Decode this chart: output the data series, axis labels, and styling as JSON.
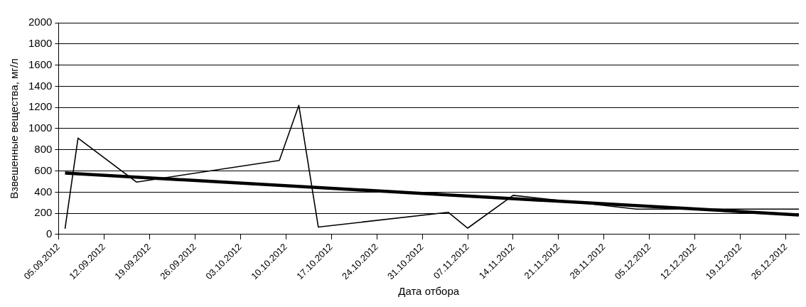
{
  "chart_data": {
    "type": "line",
    "xlabel": "Дата отбора",
    "ylabel": "Взвешенные вещества, мг/л",
    "xlim": [
      "2012-09-05",
      "2012-12-28"
    ],
    "xticks": [
      {
        "value": "2012-09-05",
        "label": "05.09.2012"
      },
      {
        "value": "2012-09-12",
        "label": "12.09.2012"
      },
      {
        "value": "2012-09-19",
        "label": "19.09.2012"
      },
      {
        "value": "2012-09-26",
        "label": "26.09.2012"
      },
      {
        "value": "2012-10-03",
        "label": "03.10.2012"
      },
      {
        "value": "2012-10-10",
        "label": "10.10.2012"
      },
      {
        "value": "2012-10-17",
        "label": "17.10.2012"
      },
      {
        "value": "2012-10-24",
        "label": "24.10.2012"
      },
      {
        "value": "2012-10-31",
        "label": "31.10.2012"
      },
      {
        "value": "2012-11-07",
        "label": "07.11.2012"
      },
      {
        "value": "2012-11-14",
        "label": "14.11.2012"
      },
      {
        "value": "2012-11-21",
        "label": "21.11.2012"
      },
      {
        "value": "2012-11-28",
        "label": "28.11.2012"
      },
      {
        "value": "2012-12-05",
        "label": "05.12.2012"
      },
      {
        "value": "2012-12-12",
        "label": "12.12.2012"
      },
      {
        "value": "2012-12-19",
        "label": "19.12.2012"
      },
      {
        "value": "2012-12-26",
        "label": "26.12.2012"
      }
    ],
    "ylim": [
      0,
      2000
    ],
    "yticks": [
      0,
      200,
      400,
      600,
      800,
      1000,
      1200,
      1400,
      1600,
      1800,
      2000
    ],
    "grid": "y",
    "legend": false,
    "marker": "none",
    "line_style": "solid",
    "series": [
      {
        "color": "#000000",
        "x": [
          "2012-09-06",
          "2012-09-08",
          "2012-09-17",
          "2012-10-09",
          "2012-10-12",
          "2012-10-15",
          "2012-11-04",
          "2012-11-07",
          "2012-11-14",
          "2012-12-03",
          "2012-12-28"
        ],
        "values": [
          55,
          910,
          495,
          700,
          1220,
          70,
          210,
          60,
          370,
          240,
          240
        ]
      },
      {
        "color": "#000000",
        "x": [
          "2012-09-06",
          "2012-12-28"
        ],
        "values": [
          580,
          185
        ]
      }
    ]
  }
}
